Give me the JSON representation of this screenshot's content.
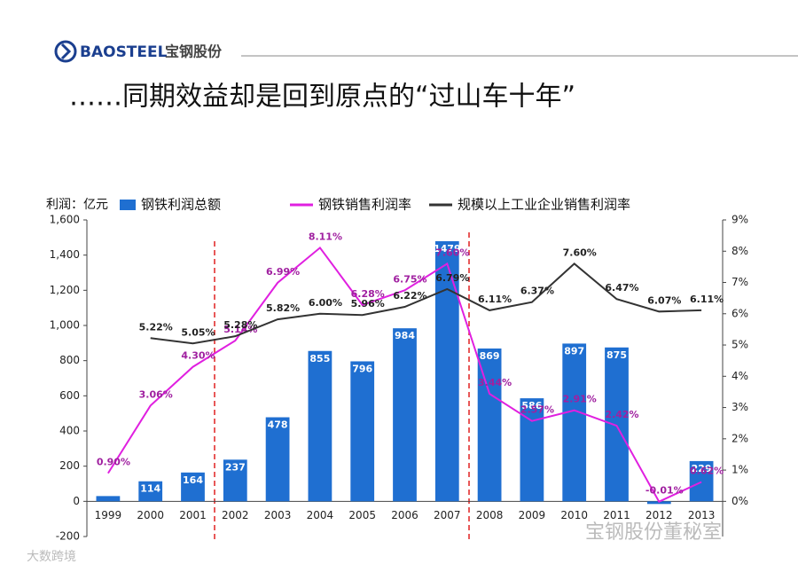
{
  "header": {
    "brand": "BAOSTEEL",
    "brand_cn": "宝钢股份"
  },
  "watermarks": [
    "宝钢股份董秘室",
    "大数跨境"
  ],
  "chart_data": {
    "type": "bar-line",
    "title": "……同期效益却是回到原点的“过山车十年”",
    "y_label": "利润：亿元",
    "categories": [
      "1999",
      "2000",
      "2001",
      "2002",
      "2003",
      "2004",
      "2005",
      "2006",
      "2007",
      "2008",
      "2009",
      "2010",
      "2011",
      "2012",
      "2013"
    ],
    "series": [
      {
        "name": "钢铁利润总额",
        "type": "bar",
        "color": "#1f6fd1",
        "values": [
          30,
          114,
          164,
          237,
          478,
          855,
          796,
          984,
          1479,
          869,
          586,
          897,
          875,
          -15,
          229
        ],
        "value_labels": [
          null,
          "114",
          "164",
          "237",
          "478",
          "855",
          "796",
          "984",
          "1479",
          "869",
          "586",
          "897",
          "875",
          null,
          "229"
        ]
      },
      {
        "name": "钢铁销售利润率",
        "type": "line",
        "axis": "y2",
        "color": "#e020e0",
        "values": [
          0.9,
          3.06,
          4.3,
          5.14,
          6.99,
          8.11,
          6.28,
          6.75,
          7.6,
          3.44,
          2.57,
          2.91,
          2.42,
          -0.01,
          0.62
        ],
        "value_labels": [
          "0.90%",
          "3.06%",
          "4.30%",
          "5.14%",
          "6.99%",
          "8.11%",
          "6.28%",
          "6.75%",
          "7.60%",
          "3.44%",
          "2.57%",
          "2.91%",
          "2.42%",
          "-0.01%",
          "0.62%"
        ]
      },
      {
        "name": "规模以上工业企业销售利润率",
        "type": "line",
        "axis": "y2",
        "color": "#333333",
        "values": [
          null,
          5.22,
          5.05,
          5.28,
          5.82,
          6.0,
          5.96,
          6.22,
          6.79,
          6.11,
          6.37,
          7.6,
          6.47,
          6.07,
          6.11
        ],
        "value_labels": [
          null,
          "5.22%",
          "5.05%",
          "5.28%",
          "5.82%",
          "6.00%",
          "5.96%",
          "6.22%",
          "6.79%",
          "6.11%",
          "6.37%",
          "7.60%",
          "6.47%",
          "6.07%",
          "6.11%"
        ]
      }
    ],
    "ylim": [
      -200,
      1600
    ],
    "yticks": [
      {
        "value": -200,
        "label": "-200"
      },
      0,
      200,
      400,
      600,
      800,
      {
        "value": 1000,
        "label": "1,000"
      },
      {
        "value": 1200,
        "label": "1,200"
      },
      {
        "value": 1400,
        "label": "1,400"
      },
      {
        "value": 1600,
        "label": "1,600"
      }
    ],
    "y2lim": [
      -1.125,
      9
    ],
    "y2ticks": [
      {
        "value": 0,
        "label": "0%"
      },
      {
        "value": 1,
        "label": "1%"
      },
      {
        "value": 2,
        "label": "2%"
      },
      {
        "value": 3,
        "label": "3%"
      },
      {
        "value": 4,
        "label": "4%"
      },
      {
        "value": 5,
        "label": "5%"
      },
      {
        "value": 6,
        "label": "6%"
      },
      {
        "value": 7,
        "label": "7%"
      },
      {
        "value": 8,
        "label": "8%"
      },
      {
        "value": 9,
        "label": "9%"
      }
    ]
  }
}
